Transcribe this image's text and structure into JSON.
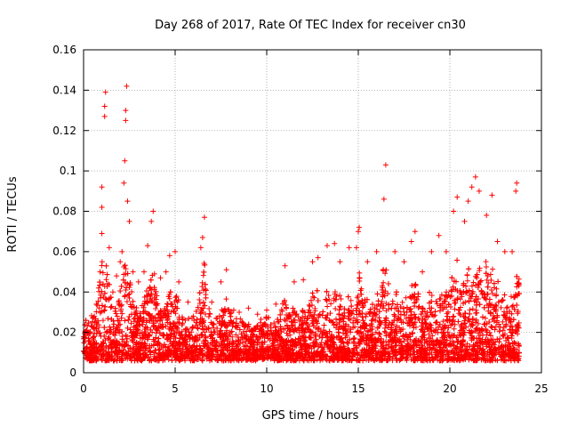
{
  "chart_data": {
    "type": "scatter",
    "title": "Day 268 of 2017, Rate Of TEC Index for receiver cn30",
    "xlabel": "GPS time / hours",
    "ylabel": "ROTI / TECUs",
    "xlim": [
      0,
      25
    ],
    "ylim": [
      0,
      0.16
    ],
    "x_ticks": [
      {
        "value": 0,
        "label": "0"
      },
      {
        "value": 5,
        "label": "5"
      },
      {
        "value": 10,
        "label": "10"
      },
      {
        "value": 15,
        "label": "15"
      },
      {
        "value": 20,
        "label": "20"
      },
      {
        "value": 25,
        "label": "25"
      }
    ],
    "y_ticks": [
      {
        "value": 0,
        "label": "0"
      },
      {
        "value": 0.02,
        "label": "0.02"
      },
      {
        "value": 0.04,
        "label": "0.04"
      },
      {
        "value": 0.06,
        "label": "0.06"
      },
      {
        "value": 0.08,
        "label": "0.08"
      },
      {
        "value": 0.1,
        "label": "0.1"
      },
      {
        "value": 0.12,
        "label": "0.12"
      },
      {
        "value": 0.14,
        "label": "0.14"
      },
      {
        "value": 0.16,
        "label": "0.16"
      }
    ],
    "grid": true,
    "legend": "none",
    "marker": "+",
    "series": [
      {
        "name": "ROTI",
        "color": "#ff0000",
        "points": [
          [
            0.1,
            0.012
          ],
          [
            0.3,
            0.02
          ],
          [
            0.5,
            0.027
          ],
          [
            0.7,
            0.034
          ],
          [
            0.9,
            0.05
          ],
          [
            1.0,
            0.069
          ],
          [
            1.0,
            0.082
          ],
          [
            1.0,
            0.092
          ],
          [
            1.15,
            0.127
          ],
          [
            1.15,
            0.132
          ],
          [
            1.2,
            0.139
          ],
          [
            1.4,
            0.062
          ],
          [
            1.6,
            0.04
          ],
          [
            1.8,
            0.048
          ],
          [
            2.0,
            0.055
          ],
          [
            2.1,
            0.06
          ],
          [
            2.2,
            0.094
          ],
          [
            2.25,
            0.105
          ],
          [
            2.3,
            0.125
          ],
          [
            2.3,
            0.13
          ],
          [
            2.35,
            0.142
          ],
          [
            2.4,
            0.085
          ],
          [
            2.5,
            0.075
          ],
          [
            2.7,
            0.05
          ],
          [
            3.0,
            0.045
          ],
          [
            3.3,
            0.05
          ],
          [
            3.5,
            0.063
          ],
          [
            3.7,
            0.075
          ],
          [
            3.8,
            0.08
          ],
          [
            4.2,
            0.047
          ],
          [
            4.5,
            0.05
          ],
          [
            4.7,
            0.058
          ],
          [
            5.0,
            0.06
          ],
          [
            5.2,
            0.045
          ],
          [
            5.7,
            0.035
          ],
          [
            6.0,
            0.028
          ],
          [
            6.4,
            0.062
          ],
          [
            6.5,
            0.067
          ],
          [
            6.6,
            0.077
          ],
          [
            7.0,
            0.035
          ],
          [
            7.5,
            0.045
          ],
          [
            7.8,
            0.051
          ],
          [
            8.2,
            0.031
          ],
          [
            8.5,
            0.03
          ],
          [
            9.0,
            0.032
          ],
          [
            9.5,
            0.029
          ],
          [
            10.0,
            0.031
          ],
          [
            10.5,
            0.034
          ],
          [
            11.0,
            0.053
          ],
          [
            11.5,
            0.045
          ],
          [
            12.0,
            0.046
          ],
          [
            12.5,
            0.055
          ],
          [
            12.8,
            0.057
          ],
          [
            13.3,
            0.063
          ],
          [
            13.7,
            0.064
          ],
          [
            14.0,
            0.055
          ],
          [
            14.5,
            0.062
          ],
          [
            14.9,
            0.062
          ],
          [
            15.0,
            0.07
          ],
          [
            15.05,
            0.072
          ],
          [
            15.5,
            0.055
          ],
          [
            16.0,
            0.06
          ],
          [
            16.4,
            0.086
          ],
          [
            16.5,
            0.103
          ],
          [
            17.0,
            0.06
          ],
          [
            17.5,
            0.055
          ],
          [
            17.9,
            0.065
          ],
          [
            18.1,
            0.07
          ],
          [
            18.5,
            0.05
          ],
          [
            19.0,
            0.06
          ],
          [
            19.4,
            0.068
          ],
          [
            19.8,
            0.06
          ],
          [
            20.2,
            0.08
          ],
          [
            20.4,
            0.087
          ],
          [
            20.8,
            0.075
          ],
          [
            21.0,
            0.085
          ],
          [
            21.2,
            0.092
          ],
          [
            21.4,
            0.097
          ],
          [
            21.6,
            0.09
          ],
          [
            22.0,
            0.078
          ],
          [
            22.3,
            0.088
          ],
          [
            22.6,
            0.065
          ],
          [
            23.0,
            0.06
          ],
          [
            23.4,
            0.06
          ],
          [
            23.6,
            0.09
          ],
          [
            23.65,
            0.094
          ]
        ]
      }
    ]
  }
}
